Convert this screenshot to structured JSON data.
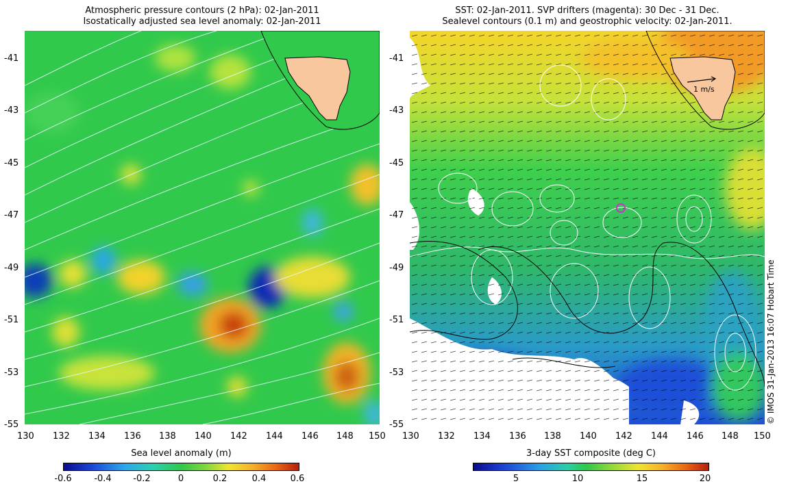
{
  "left_panel": {
    "title_line1": "Atmospheric pressure contours (2 hPa): 02-Jan-2011",
    "title_line2": "Isostatically adjusted sea level anomaly: 02-Jan-2011",
    "y_ticks": [
      "-41",
      "-43",
      "-45",
      "-47",
      "-49",
      "-51",
      "-53",
      "-55"
    ],
    "x_ticks": [
      "130",
      "132",
      "134",
      "136",
      "138",
      "140",
      "142",
      "144",
      "146",
      "148",
      "150"
    ],
    "colorbar_label": "Sea level anomaly (m)",
    "colorbar_ticks": [
      "-0.6",
      "-0.4",
      "-0.2",
      "0",
      "0.2",
      "0.4",
      "0.6"
    ],
    "colorbar_range": [
      -0.6,
      0.6
    ]
  },
  "right_panel": {
    "title_line1": "SST: 02-Jan-2011. SVP drifters (magenta): 30 Dec - 31 Dec.",
    "title_line2": "Sealevel contours (0.1 m) and geostrophic velocity: 02-Jan-2011.",
    "y_ticks": [
      "-41",
      "-43",
      "-45",
      "-47",
      "-49",
      "-51",
      "-53",
      "-55"
    ],
    "x_ticks": [
      "130",
      "132",
      "134",
      "136",
      "138",
      "140",
      "142",
      "144",
      "146",
      "148",
      "150"
    ],
    "colorbar_label": "3-day SST composite (deg C)",
    "colorbar_ticks": [
      "5",
      "10",
      "15",
      "20"
    ],
    "colorbar_range": [
      1,
      20
    ],
    "velocity_scale_label": "1 m/s"
  },
  "map_extent": {
    "lon": [
      130,
      150
    ],
    "lat": [
      -55,
      -40
    ]
  },
  "credit": "© IMOS 31-Jan-2013 16:07 Hobart Time",
  "colors": {
    "land": "#f9c79d",
    "ocean_mid": "#22c84a",
    "drifter": "#cc33cc",
    "contour": "#ffffff"
  }
}
